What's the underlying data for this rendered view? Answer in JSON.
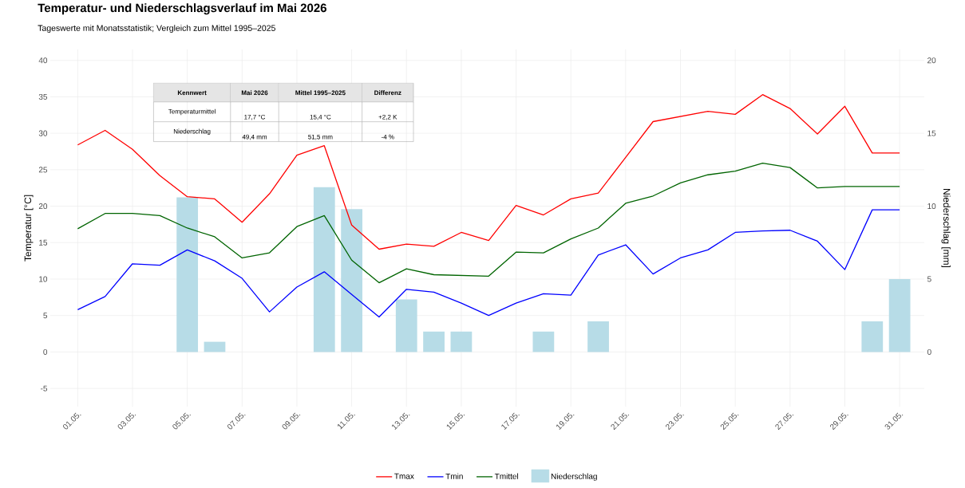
{
  "chart_data": {
    "type": "line",
    "title": "Temperatur- und Niederschlagsverlauf im Mai 2026",
    "subtitle": "Tageswerte mit Monatsstatistik; Vergleich zum Mittel 1995–2025",
    "ylabel": "Temperatur [°C]",
    "y2label": "Niederschlag [mm]",
    "categories": [
      "01.05.",
      null,
      "03.05.",
      null,
      "05.05.",
      null,
      "07.05.",
      null,
      "09.05.",
      null,
      "11.05.",
      null,
      "13.05.",
      null,
      "15.05.",
      null,
      "17.05.",
      null,
      "19.05.",
      null,
      "21.05.",
      null,
      "23.05.",
      null,
      "25.05.",
      null,
      "27.05.",
      null,
      "29.05.",
      null,
      "31.05."
    ],
    "series": [
      {
        "name": "Tmax",
        "color": "#ff0000",
        "values": [
          28.4,
          30.4,
          27.8,
          24.2,
          21.3,
          21.0,
          17.8,
          21.7,
          27.0,
          28.3,
          17.4,
          14.1,
          14.8,
          14.5,
          16.4,
          15.3,
          20.1,
          18.8,
          21.0,
          21.8,
          26.7,
          31.6,
          32.3,
          33.0,
          32.6,
          35.3,
          33.4,
          29.9,
          33.7,
          27.3,
          27.3
        ]
      },
      {
        "name": "Tmin",
        "color": "#0000ff",
        "values": [
          5.8,
          7.6,
          12.1,
          11.9,
          14.0,
          12.5,
          10.1,
          5.5,
          8.9,
          11.0,
          7.9,
          4.8,
          8.6,
          8.2,
          6.7,
          5.0,
          6.7,
          8.0,
          7.8,
          13.3,
          14.7,
          10.7,
          12.9,
          14.0,
          16.4,
          16.6,
          16.7,
          15.2,
          11.3,
          19.5,
          19.5
        ]
      },
      {
        "name": "Tmittel",
        "color": "#006400",
        "values": [
          16.9,
          19.0,
          19.0,
          18.7,
          17.0,
          15.8,
          12.9,
          13.6,
          17.2,
          18.7,
          12.6,
          9.5,
          11.4,
          10.6,
          10.5,
          10.4,
          13.7,
          13.6,
          15.5,
          17.0,
          20.4,
          21.4,
          23.2,
          24.3,
          24.8,
          25.9,
          25.3,
          22.5,
          22.7,
          22.7,
          22.7
        ]
      },
      {
        "name": "Niederschlag",
        "type": "bar",
        "axis": "y2",
        "color": "#b7dce7",
        "values": [
          null,
          null,
          null,
          null,
          10.6,
          0.7,
          null,
          null,
          null,
          11.3,
          9.8,
          null,
          3.6,
          1.4,
          1.4,
          null,
          null,
          1.4,
          null,
          2.1,
          null,
          null,
          null,
          null,
          null,
          null,
          null,
          null,
          null,
          2.1,
          5.0
        ]
      }
    ],
    "ylim": [
      -7.5,
      41.5
    ],
    "yticks": [
      -5,
      0,
      5,
      10,
      15,
      20,
      25,
      30,
      35,
      40
    ],
    "y2lim": [
      -3.75,
      20.75
    ],
    "y2ticks": [
      0,
      5,
      10,
      15,
      20
    ],
    "grid": true,
    "legend": "bottom",
    "annotations": [
      "Kennwert",
      "Mai 2026",
      "Mittel 1995–2025",
      "Differenz",
      "Temperaturmittel",
      "17,7 °C",
      "15,4 °C",
      "+2,2 K",
      "Niederschlag",
      "49,4 mm",
      "51,5 mm",
      "-4 %"
    ]
  }
}
